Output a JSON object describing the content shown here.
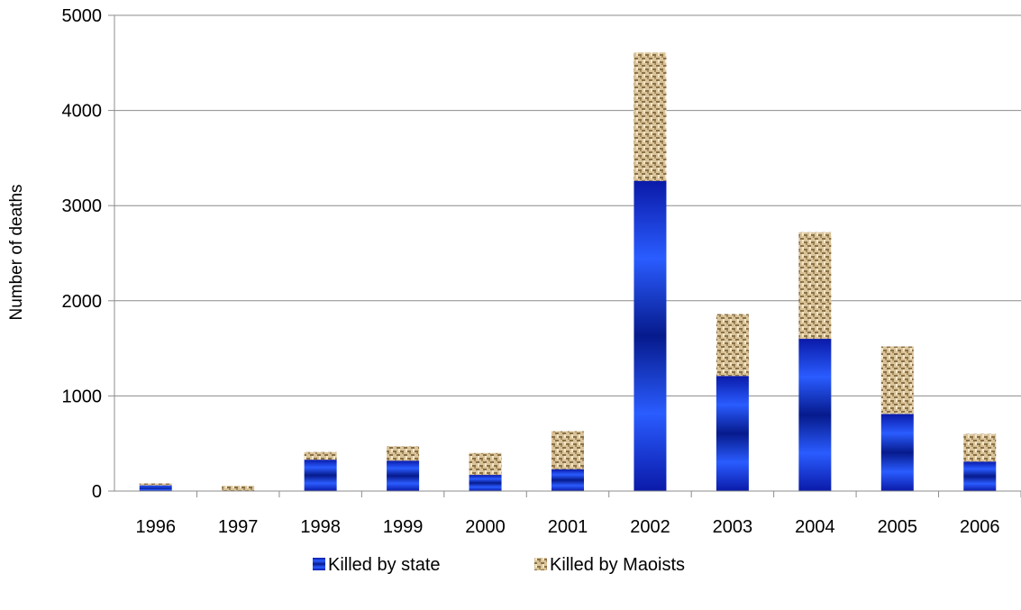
{
  "chart_data": {
    "type": "bar",
    "stacked": true,
    "title": "",
    "xlabel": "",
    "ylabel": "Number of deaths",
    "ylim": [
      0,
      5000
    ],
    "yticks": [
      "0",
      "1000",
      "2000",
      "3000",
      "4000",
      "5000"
    ],
    "grid": true,
    "legend_position": "bottom",
    "categories": [
      "1996",
      "1997",
      "1998",
      "1999",
      "2000",
      "2001",
      "2002",
      "2003",
      "2004",
      "2005",
      "2006"
    ],
    "series": [
      {
        "name": "Killed by state",
        "color": "#1f3fe0",
        "values": [
          60,
          5,
          330,
          320,
          170,
          230,
          3260,
          1210,
          1600,
          810,
          310
        ]
      },
      {
        "name": "Killed by Maoists",
        "color": "#c8ad7f",
        "values": [
          20,
          50,
          80,
          150,
          230,
          400,
          1350,
          650,
          1120,
          710,
          290
        ]
      }
    ]
  }
}
